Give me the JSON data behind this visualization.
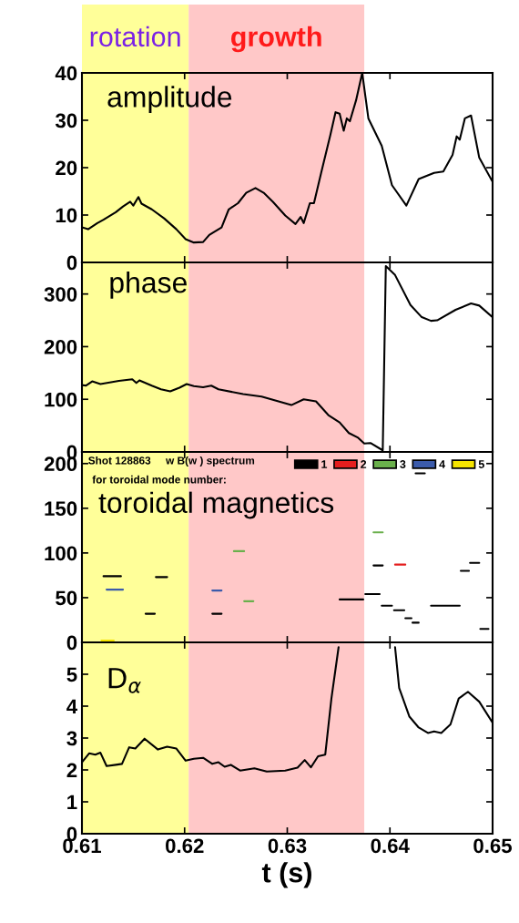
{
  "chart_data": [
    {
      "type": "line",
      "title": "amplitude",
      "xlim": [
        0.61,
        0.65
      ],
      "xticks": [
        0.61,
        0.62,
        0.63,
        0.64,
        0.65
      ],
      "ylim": [
        0,
        40
      ],
      "yticks": [
        0,
        10,
        20,
        30,
        40
      ],
      "tick_labels": "y",
      "bands": [
        {
          "axis": "x",
          "from": 0.61,
          "to": 0.6204,
          "label": "rotation",
          "color": "#ffff99"
        },
        {
          "axis": "x",
          "from": 0.6204,
          "to": 0.6375,
          "label": "growth",
          "color": "#ffc8c8"
        }
      ],
      "series": [
        {
          "color": "#000000",
          "x": [
            0.61,
            0.6106,
            0.6115,
            0.6121,
            0.6133,
            0.614,
            0.6147,
            0.615,
            0.6155,
            0.6158,
            0.6168,
            0.618,
            0.6192,
            0.6201,
            0.6209,
            0.6218,
            0.6224,
            0.6236,
            0.6243,
            0.6252,
            0.626,
            0.6269,
            0.6277,
            0.6286,
            0.6298,
            0.6308,
            0.6313,
            0.6316,
            0.6322,
            0.6326,
            0.6333,
            0.6342,
            0.6347,
            0.6351,
            0.6355,
            0.6358,
            0.6361,
            0.6367,
            0.6373,
            0.6379,
            0.6392,
            0.6402,
            0.6416,
            0.6428,
            0.6443,
            0.6452,
            0.6461,
            0.6465,
            0.6468,
            0.6473,
            0.6479,
            0.6487,
            0.65
          ],
          "values": [
            7.4,
            7.0,
            8.3,
            9.0,
            10.6,
            11.8,
            12.8,
            12.0,
            13.8,
            12.4,
            11.2,
            9.3,
            7.0,
            4.9,
            4.2,
            4.3,
            5.8,
            7.4,
            11.2,
            12.5,
            14.7,
            15.7,
            14.7,
            12.8,
            9.9,
            8.1,
            9.6,
            8.3,
            12.5,
            12.5,
            18.9,
            26.9,
            31.7,
            31.4,
            27.8,
            30.4,
            29.8,
            34.2,
            40,
            30.4,
            24.6,
            16.3,
            12.0,
            17.6,
            18.9,
            19.2,
            22.7,
            26.6,
            25.9,
            30.4,
            31.0,
            22.1,
            17.0
          ]
        }
      ]
    },
    {
      "type": "line",
      "title": "phase",
      "xlim": [
        0.61,
        0.65
      ],
      "xticks": [
        0.61,
        0.62,
        0.63,
        0.64,
        0.65
      ],
      "ylim": [
        0,
        360
      ],
      "yticks": [
        0,
        100,
        200,
        300
      ],
      "tick_labels": "y",
      "bands": [
        {
          "axis": "x",
          "from": 0.61,
          "to": 0.6204,
          "color": "#ffff99"
        },
        {
          "axis": "x",
          "from": 0.6204,
          "to": 0.6375,
          "color": "#ffc8c8"
        }
      ],
      "series": [
        {
          "color": "#000000",
          "x": [
            0.61,
            0.6104,
            0.611,
            0.6118,
            0.6136,
            0.6149,
            0.6153,
            0.6156,
            0.6168,
            0.6177,
            0.6186,
            0.6195,
            0.6202,
            0.6209,
            0.6218,
            0.6226,
            0.6233,
            0.6257,
            0.6275,
            0.6304,
            0.6316,
            0.6328,
            0.634,
            0.6351,
            0.636,
            0.6369,
            0.6375,
            0.6381,
            0.6393,
            0.6396,
            0.6405,
            0.642,
            0.6431,
            0.644,
            0.6446,
            0.6464,
            0.6479,
            0.6487,
            0.65
          ],
          "values": [
            127,
            126,
            134,
            129,
            135,
            138,
            131,
            136,
            126,
            119,
            115,
            122,
            129,
            125,
            123,
            126,
            119,
            110,
            105,
            89,
            100,
            96,
            70,
            56,
            36,
            27,
            16,
            17,
            3,
            353,
            336,
            279,
            256,
            249,
            250,
            270,
            282,
            278,
            256
          ]
        }
      ]
    },
    {
      "type": "line",
      "title": "toroidal magnetics",
      "xlim": [
        0.61,
        0.65
      ],
      "xticks": [
        0.61,
        0.62,
        0.63,
        0.64,
        0.65
      ],
      "ylim": [
        0,
        213
      ],
      "yticks": [
        0,
        50,
        100,
        150,
        200
      ],
      "tick_labels": "y",
      "legend": "top right",
      "annotations": [
        "Shot 128863     w B(w ) spectrum",
        "for toroidal mode number:"
      ],
      "bands": [
        {
          "axis": "x",
          "from": 0.61,
          "to": 0.6204,
          "color": "#ffff99"
        },
        {
          "axis": "x",
          "from": 0.6204,
          "to": 0.6375,
          "color": "#ffc8c8"
        }
      ],
      "series": [
        {
          "name": "1",
          "color": "#000000",
          "x": [
            0.6121,
            0.6138,
            null,
            0.6172,
            0.6183,
            null,
            0.6162,
            0.6171,
            null,
            0.6227,
            0.6236,
            null,
            0.6384,
            0.6393,
            null,
            0.6351,
            0.6374,
            null,
            0.6376,
            0.639,
            null,
            0.6392,
            0.6402,
            null,
            0.6404,
            0.6414,
            null,
            0.6415,
            0.6421,
            null,
            0.6422,
            0.6428,
            null,
            0.6478,
            0.6487,
            null,
            0.6469,
            0.6477,
            null,
            0.644,
            0.6468,
            null,
            0.6488,
            0.6496,
            null,
            0.6425,
            0.6434
          ],
          "values": [
            74,
            74,
            null,
            73,
            73,
            null,
            32,
            32,
            null,
            32,
            32,
            null,
            86,
            86,
            null,
            48,
            48,
            null,
            54,
            54,
            null,
            41,
            41,
            null,
            36,
            36,
            null,
            27,
            27,
            null,
            22,
            22,
            null,
            89,
            89,
            null,
            80,
            80,
            null,
            41,
            41,
            null,
            15,
            15,
            null,
            189,
            189
          ]
        },
        {
          "name": "2",
          "color": "#e41e1e",
          "x": [
            0.6405,
            0.6415
          ],
          "values": [
            87,
            87
          ]
        },
        {
          "name": "3",
          "color": "#6ab04c",
          "x": [
            0.6248,
            0.6258,
            null,
            0.6258,
            0.6267,
            null,
            0.6384,
            0.6393
          ],
          "values": [
            102,
            102,
            null,
            46,
            46,
            null,
            123,
            123
          ]
        },
        {
          "name": "4",
          "color": "#3b5bab",
          "x": [
            0.6124,
            0.614,
            null,
            0.6227,
            0.6236
          ],
          "values": [
            59,
            59,
            null,
            58,
            58
          ]
        },
        {
          "name": "5",
          "color": "#f5e400",
          "x": [
            0.6119,
            0.6131
          ],
          "values": [
            2,
            2
          ]
        }
      ]
    },
    {
      "type": "line",
      "title": "D$_{α}$",
      "xlabel": "t (s)",
      "xlim": [
        0.61,
        0.65
      ],
      "xticks": [
        0.61,
        0.62,
        0.63,
        0.64,
        0.65
      ],
      "ylim": [
        0,
        6
      ],
      "yticks": [
        0,
        1,
        2,
        3,
        4,
        5
      ],
      "bands": [
        {
          "axis": "x",
          "from": 0.61,
          "to": 0.6204,
          "color": "#ffff99"
        },
        {
          "axis": "x",
          "from": 0.6204,
          "to": 0.6375,
          "color": "#ffc8c8"
        }
      ],
      "series": [
        {
          "color": "#000000",
          "x": [
            0.61,
            0.6107,
            0.6113,
            0.6118,
            0.6124,
            0.6133,
            0.6139,
            0.6146,
            0.6152,
            0.6161,
            0.6174,
            0.6183,
            0.6192,
            0.6201,
            0.6209,
            0.6218,
            0.6227,
            0.6233,
            0.6239,
            0.6245,
            0.6254,
            0.6268,
            0.628,
            0.6298,
            0.631,
            0.6317,
            0.6323,
            0.633,
            0.6337,
            0.6343,
            0.635,
            0.6352,
            0.6404,
            0.6405,
            0.6409,
            0.6419,
            0.6428,
            0.6437,
            0.6443,
            0.645,
            0.6459,
            0.6467,
            0.6476,
            0.6487,
            0.65
          ],
          "values": [
            2.24,
            2.52,
            2.48,
            2.54,
            2.12,
            2.16,
            2.19,
            2.71,
            2.67,
            2.98,
            2.64,
            2.73,
            2.67,
            2.29,
            2.35,
            2.38,
            2.19,
            2.24,
            2.1,
            2.16,
            1.98,
            2.05,
            1.95,
            1.98,
            2.07,
            2.31,
            2.08,
            2.43,
            2.48,
            4.24,
            5.85,
            null,
            null,
            5.85,
            4.57,
            3.67,
            3.33,
            3.16,
            3.21,
            3.16,
            3.43,
            4.24,
            4.45,
            4.14,
            3.48
          ]
        }
      ]
    }
  ]
}
